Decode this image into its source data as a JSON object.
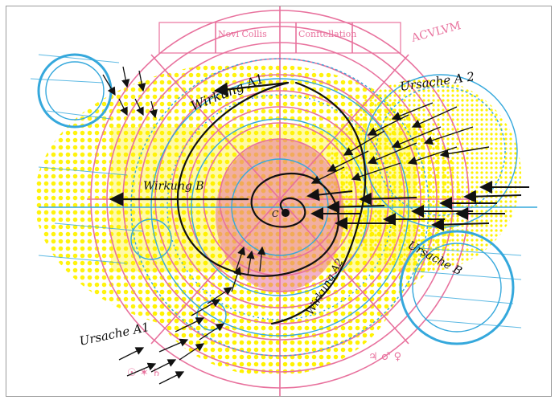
{
  "artwork": {
    "palette": {
      "magenta": "#e8719d",
      "yellow": "#fff200",
      "cyan": "#35a8dc",
      "ink": "#111111",
      "paper": "#ffffff",
      "frame": "#9a9a9a"
    },
    "handwritten_labels": {
      "wirkung_a1": "Wirkung A1",
      "wirkung_b": "Wirkung B",
      "wirkung_a2": "Wirkung A2",
      "ursache_a2": "Ursache A 2",
      "ursache_b": "Ursache B",
      "ursache_a1": "Ursache A1",
      "center": "C"
    },
    "print_fragments": {
      "frag_1": "Novi Collis",
      "frag_2": "Conftellation",
      "frag_3": "ACVLVM"
    }
  }
}
